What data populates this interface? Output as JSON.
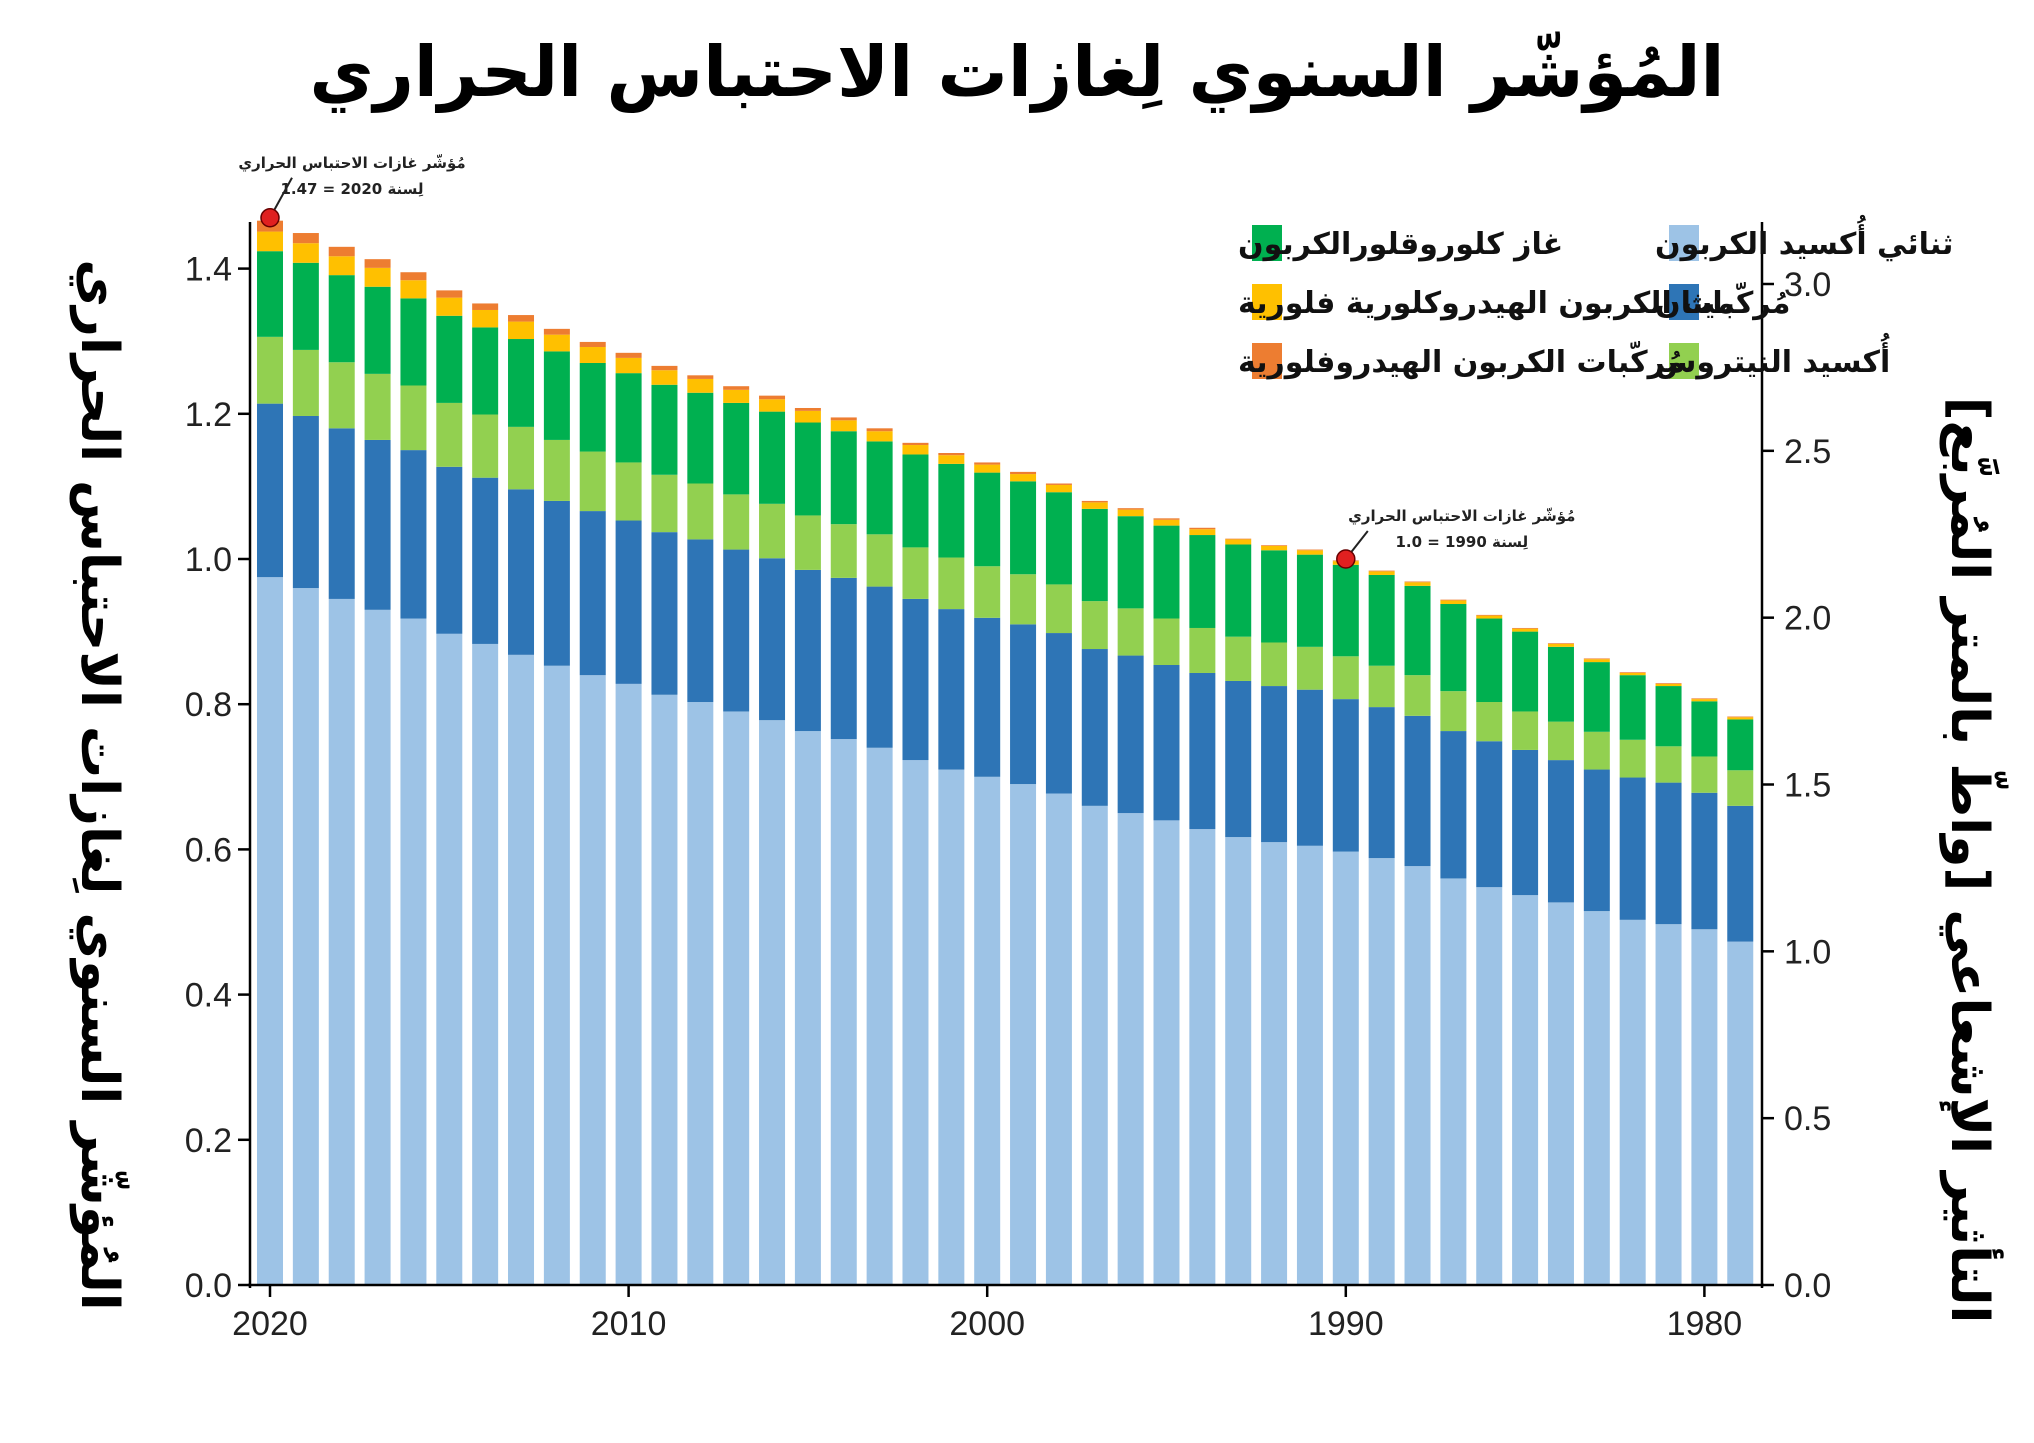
{
  "chart_data": {
    "type": "bar",
    "stacked": true,
    "title": "المُؤشّر السنوي لِغازات الاحتباس الحراري",
    "ylabel": "المُؤشّر السنوي لِغازات الاحتباس الحراري",
    "ylabel_right": "التأثير الإشعاعي [واطّ بالمتر المُربَّع]",
    "ylim": [
      0,
      1.5
    ],
    "ylim_right": [
      0,
      3.2
    ],
    "yticks": [
      "0.0",
      "0.2",
      "0.4",
      "0.6",
      "0.8",
      "1.0",
      "1.2",
      "1.4"
    ],
    "yticks_right": [
      "0.0",
      "0.5",
      "1.0",
      "1.5",
      "2.0",
      "2.5",
      "3.0"
    ],
    "x_axis_reversed": true,
    "xticks": [
      "2020",
      "2010",
      "2000",
      "1990",
      "1980"
    ],
    "categories": [
      2020,
      2019,
      2018,
      2017,
      2016,
      2015,
      2014,
      2013,
      2012,
      2011,
      2010,
      2009,
      2008,
      2007,
      2006,
      2005,
      2004,
      2003,
      2002,
      2001,
      2000,
      1999,
      1998,
      1997,
      1996,
      1995,
      1994,
      1993,
      1992,
      1991,
      1990,
      1989,
      1988,
      1987,
      1986,
      1985,
      1984,
      1983,
      1982,
      1981,
      1980,
      1979
    ],
    "series": [
      {
        "name": "ثنائي أُكسيد الكربون",
        "color": "#9dc3e6",
        "values": [
          0.975,
          0.96,
          0.945,
          0.93,
          0.918,
          0.897,
          0.883,
          0.868,
          0.853,
          0.84,
          0.828,
          0.813,
          0.803,
          0.79,
          0.778,
          0.763,
          0.752,
          0.74,
          0.723,
          0.71,
          0.7,
          0.69,
          0.677,
          0.66,
          0.65,
          0.64,
          0.628,
          0.617,
          0.61,
          0.605,
          0.597,
          0.588,
          0.577,
          0.56,
          0.548,
          0.537,
          0.527,
          0.515,
          0.503,
          0.497,
          0.49,
          0.473
        ]
      },
      {
        "name": "ميثان",
        "color": "#2e75b6",
        "values": [
          0.239,
          0.237,
          0.235,
          0.234,
          0.232,
          0.23,
          0.229,
          0.228,
          0.227,
          0.226,
          0.225,
          0.224,
          0.224,
          0.223,
          0.223,
          0.222,
          0.222,
          0.222,
          0.222,
          0.221,
          0.219,
          0.22,
          0.221,
          0.216,
          0.217,
          0.214,
          0.215,
          0.215,
          0.215,
          0.215,
          0.21,
          0.208,
          0.207,
          0.203,
          0.201,
          0.2,
          0.196,
          0.195,
          0.196,
          0.195,
          0.188,
          0.187
        ]
      },
      {
        "name": "أُكسيد النيتروس",
        "color": "#92d050",
        "values": [
          0.092,
          0.091,
          0.091,
          0.091,
          0.089,
          0.088,
          0.087,
          0.086,
          0.084,
          0.082,
          0.08,
          0.079,
          0.077,
          0.076,
          0.075,
          0.075,
          0.074,
          0.072,
          0.071,
          0.071,
          0.071,
          0.069,
          0.067,
          0.066,
          0.065,
          0.064,
          0.062,
          0.061,
          0.06,
          0.059,
          0.059,
          0.057,
          0.056,
          0.055,
          0.054,
          0.053,
          0.053,
          0.052,
          0.052,
          0.05,
          0.05,
          0.049
        ]
      },
      {
        "name": "غاز كلوروقلورالكربون",
        "color": "#00b050",
        "values": [
          0.118,
          0.12,
          0.12,
          0.12,
          0.12,
          0.12,
          0.12,
          0.121,
          0.122,
          0.122,
          0.123,
          0.124,
          0.125,
          0.126,
          0.127,
          0.128,
          0.128,
          0.128,
          0.128,
          0.129,
          0.129,
          0.128,
          0.127,
          0.127,
          0.127,
          0.128,
          0.128,
          0.127,
          0.127,
          0.127,
          0.126,
          0.125,
          0.123,
          0.12,
          0.115,
          0.11,
          0.103,
          0.096,
          0.089,
          0.083,
          0.076,
          0.07
        ]
      },
      {
        "name": "مُركّبات الكربون الهيدروكلورية فلورية",
        "color": "#ffc000",
        "values": [
          0.027,
          0.027,
          0.026,
          0.026,
          0.025,
          0.025,
          0.024,
          0.024,
          0.023,
          0.022,
          0.021,
          0.02,
          0.019,
          0.018,
          0.017,
          0.016,
          0.015,
          0.014,
          0.013,
          0.012,
          0.011,
          0.01,
          0.01,
          0.009,
          0.009,
          0.008,
          0.008,
          0.007,
          0.006,
          0.006,
          0.005,
          0.005,
          0.005,
          0.005,
          0.004,
          0.004,
          0.004,
          0.004,
          0.003,
          0.003,
          0.003,
          0.003
        ]
      },
      {
        "name": "مُركّبات الكربون الهيدروفلورية",
        "color": "#ed7d31",
        "values": [
          0.015,
          0.014,
          0.013,
          0.012,
          0.011,
          0.01,
          0.009,
          0.009,
          0.008,
          0.007,
          0.007,
          0.006,
          0.005,
          0.005,
          0.005,
          0.004,
          0.004,
          0.004,
          0.003,
          0.003,
          0.003,
          0.003,
          0.002,
          0.002,
          0.002,
          0.002,
          0.002,
          0.001,
          0.001,
          0.001,
          0.001,
          0.001,
          0.001,
          0.001,
          0.001,
          0.001,
          0.001,
          0.001,
          0.001,
          0.001,
          0.001,
          0.001
        ]
      }
    ],
    "legend": {
      "right_column": [
        "ثنائي أُكسيد الكربون",
        "ميثان",
        "أُكسيد النيتروس"
      ],
      "left_column": [
        "غاز كلوروقلورالكربون",
        "مُركّبات الكربون الهيدروكلورية فلورية",
        "مُركّبات الكربون الهيدروفلورية"
      ]
    },
    "annotations": [
      {
        "year": 2020,
        "value": 1.47,
        "line1": "مُؤشّر غازات الاحتباس الحراري",
        "line2": "لِسنة 2020 = 1.47"
      },
      {
        "year": 1990,
        "value": 1.0,
        "line1": "مُؤشّر غازات الاحتباس الحراري",
        "line2": "لِسنة 1990 = 1.0"
      }
    ],
    "marker_color": "#e02020"
  }
}
